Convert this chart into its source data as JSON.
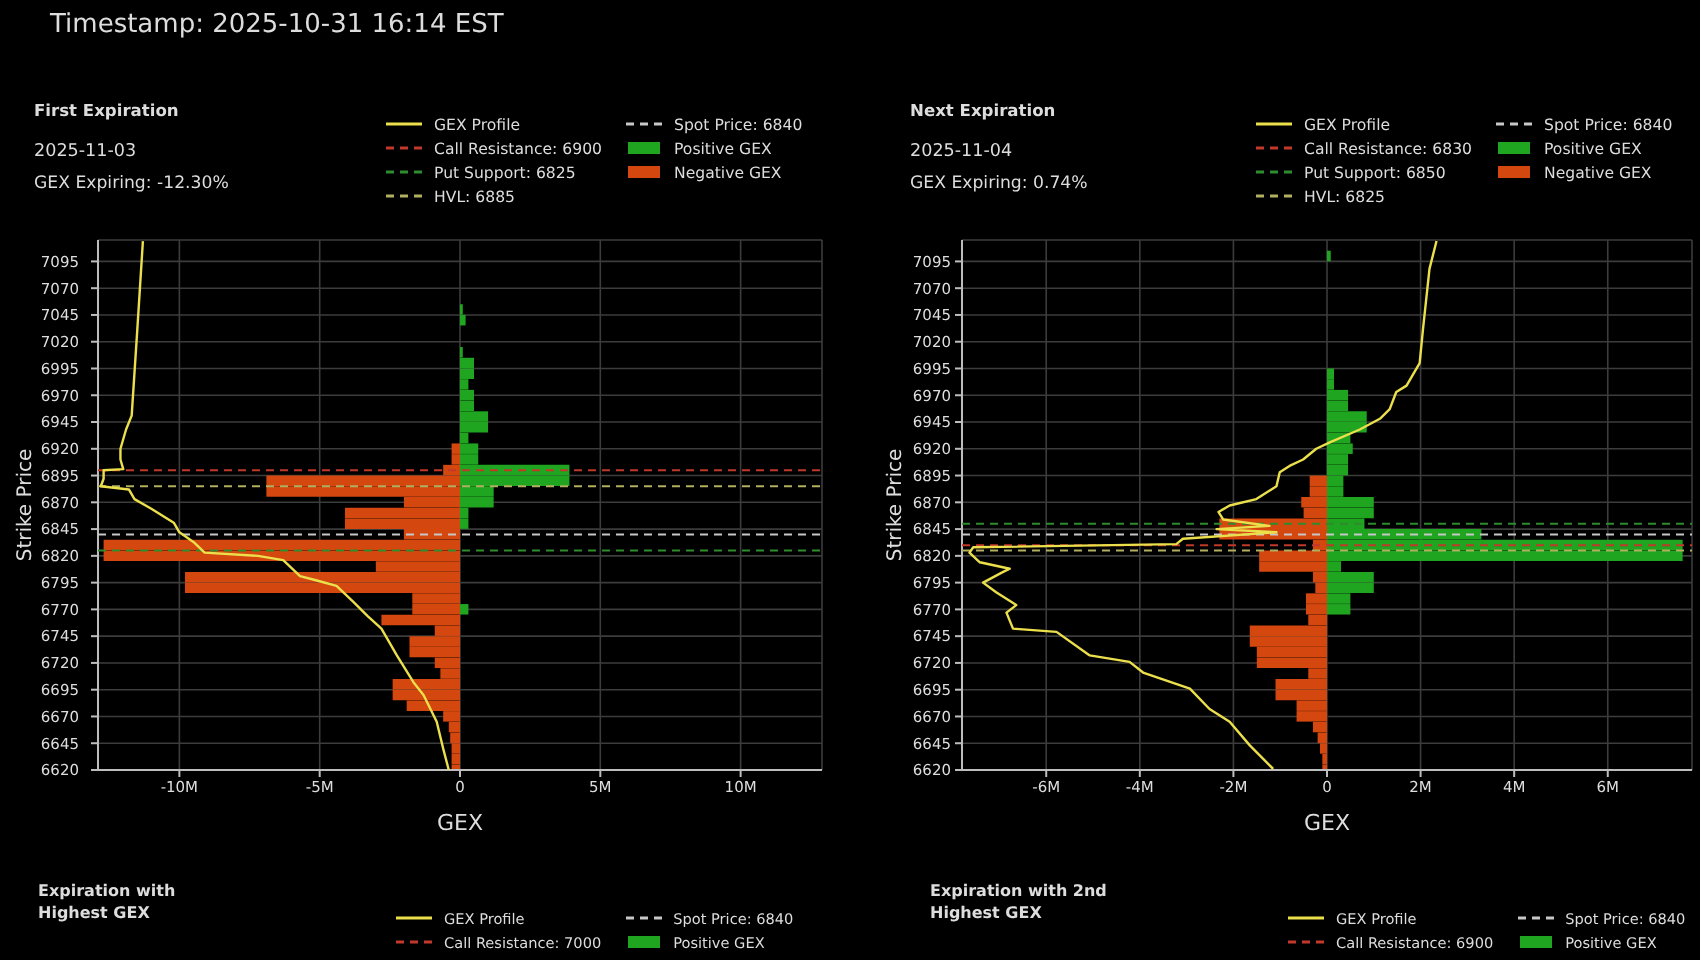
{
  "chart_data": [
    {
      "type": "other",
      "title": "Timestamp: 2025-10-31 16:14 EST"
    },
    {
      "type": "bar",
      "orientation": "horizontal",
      "title": "First Expiration",
      "subtitle": "2025-11-03",
      "annotations": [
        "GEX Expiring: -12.30%"
      ],
      "xlabel": "GEX",
      "ylabel": "Strike Price",
      "x": [
        6620,
        6630,
        6640,
        6650,
        6660,
        6670,
        6680,
        6690,
        6700,
        6710,
        6720,
        6730,
        6740,
        6750,
        6760,
        6770,
        6780,
        6790,
        6800,
        6810,
        6820,
        6830,
        6840,
        6850,
        6860,
        6870,
        6880,
        6890,
        6900,
        6910,
        6920,
        6930,
        6940,
        6950,
        6960,
        6970,
        6980,
        6990,
        7000,
        7010,
        7020,
        7030,
        7040,
        7050
      ],
      "series": [
        {
          "name": "GEX Profile",
          "type": "line",
          "color": "#ebe04b",
          "x": [
            7114,
            7031,
            6951,
            6938,
            6920,
            6910,
            6901,
            6900,
            6892,
            6885,
            6882,
            6873,
            6864,
            6851,
            6842,
            6833,
            6823,
            6820,
            6816,
            6801,
            6797,
            6792,
            6777,
            6764,
            6752,
            6727,
            6702,
            6690,
            6665,
            6640,
            6620
          ],
          "values": [
            -11.3,
            -11.5,
            -11.7,
            -11.9,
            -12.1,
            -12.1,
            -12.0,
            -12.7,
            -12.7,
            -12.8,
            -11.8,
            -11.6,
            -11.0,
            -10.2,
            -10.0,
            -9.5,
            -9.1,
            -7.2,
            -6.3,
            -5.7,
            -5.1,
            -4.4,
            -3.8,
            -3.3,
            -2.8,
            -2.25,
            -1.66,
            -1.3,
            -0.83,
            -0.6,
            -0.4
          ]
        },
        {
          "name": "Positive GEX",
          "color": "#1fa51f",
          "values": [
            null,
            null,
            null,
            null,
            null,
            null,
            null,
            null,
            null,
            null,
            null,
            null,
            null,
            null,
            null,
            0.3,
            null,
            null,
            null,
            null,
            null,
            null,
            null,
            0.3,
            0.3,
            1.2,
            1.2,
            3.9,
            3.9,
            0.65,
            0.65,
            0.3,
            1.0,
            1.0,
            0.5,
            0.5,
            0.3,
            0.5,
            0.5,
            0.1,
            null,
            null,
            0.2,
            0.1
          ]
        },
        {
          "name": "Negative GEX",
          "color": "#d4470e",
          "values": [
            -0.3,
            -0.3,
            -0.3,
            -0.35,
            -0.4,
            -0.6,
            -1.9,
            -2.4,
            -2.4,
            -0.7,
            -0.9,
            -1.8,
            -1.8,
            -0.9,
            -2.8,
            -1.7,
            -1.7,
            -9.8,
            -9.8,
            -3.0,
            -12.7,
            -12.7,
            -2.0,
            -4.1,
            -4.1,
            -2.0,
            -6.9,
            -6.9,
            -0.6,
            -0.3,
            -0.3,
            null,
            null,
            null,
            null,
            null,
            null,
            null,
            null,
            null,
            null,
            null,
            null,
            null
          ]
        }
      ],
      "xlim": [
        -12.9,
        12.9
      ],
      "xticks": [
        {
          "value": -10,
          "label": "-10M"
        },
        {
          "value": -5,
          "label": "-5M"
        },
        0,
        {
          "value": 5,
          "label": "5M"
        },
        {
          "value": 10,
          "label": "10M"
        }
      ],
      "ylim": [
        6620,
        7115
      ],
      "yticks": [
        6620,
        6645,
        6670,
        6695,
        6720,
        6745,
        6770,
        6795,
        6820,
        6845,
        6870,
        6895,
        6920,
        6945,
        6970,
        6995,
        7020,
        7045,
        7070,
        7095
      ],
      "ref_lines": [
        {
          "axis": "y",
          "value": 6900,
          "label": "Call Resistance: 6900",
          "color": "#c0392b",
          "line_style": "dashed"
        },
        {
          "axis": "y",
          "value": 6825,
          "label": "Put Support: 6825",
          "color": "#2e8b2e",
          "line_style": "dashed"
        },
        {
          "axis": "y",
          "value": 6885,
          "label": "HVL: 6885",
          "color": "#b0b060",
          "line_style": "dashed"
        },
        {
          "axis": "y",
          "value": 6840,
          "label": "Spot Price: 6840",
          "color": "#c8c8c8",
          "line_style": "dashed"
        }
      ],
      "grid": true,
      "legend": "top right"
    },
    {
      "type": "bar",
      "orientation": "horizontal",
      "title": "Next Expiration",
      "subtitle": "2025-11-04",
      "annotations": [
        "GEX Expiring: 0.74%"
      ],
      "xlabel": "GEX",
      "ylabel": "Strike Price",
      "x": [
        6620,
        6630,
        6640,
        6650,
        6660,
        6670,
        6680,
        6690,
        6700,
        6710,
        6720,
        6730,
        6740,
        6750,
        6760,
        6770,
        6780,
        6790,
        6800,
        6810,
        6820,
        6830,
        6840,
        6850,
        6860,
        6870,
        6880,
        6890,
        6900,
        6910,
        6920,
        6930,
        6940,
        6950,
        6960,
        6970,
        6980,
        6990,
        7000,
        7010,
        7020,
        7030,
        7040,
        7050,
        7060,
        7070,
        7080,
        7090,
        7100
      ],
      "series": [
        {
          "name": "GEX Profile",
          "type": "line",
          "color": "#ebe04b",
          "x": [
            7114,
            7088,
            7031,
            7000,
            6979,
            6973,
            6957,
            6948,
            6938,
            6926,
            6920,
            6910,
            6904,
            6898,
            6885,
            6879,
            6873,
            6867,
            6861,
            6854,
            6848,
            6845,
            6842,
            6836,
            6831,
            6828,
            6823,
            6814,
            6808,
            6805,
            6795,
            6786,
            6774,
            6767,
            6752,
            6749,
            6727,
            6721,
            6711,
            6696,
            6677,
            6665,
            6643,
            6621
          ],
          "values": [
            2.34,
            2.19,
            2.05,
            1.98,
            1.7,
            1.48,
            1.34,
            1.13,
            0.7,
            0.06,
            -0.23,
            -0.51,
            -0.8,
            -1.01,
            -1.08,
            -1.3,
            -1.51,
            -2.08,
            -2.32,
            -2.22,
            -1.23,
            -2.36,
            -1.08,
            -3.08,
            -3.22,
            -7.56,
            -7.64,
            -7.42,
            -6.78,
            -6.92,
            -7.35,
            -7.07,
            -6.64,
            -6.85,
            -6.71,
            -5.78,
            -5.07,
            -4.22,
            -3.93,
            -2.93,
            -2.51,
            -2.08,
            -1.65,
            -1.15
          ]
        },
        {
          "name": "Positive GEX",
          "color": "#1fa51f",
          "values": [
            null,
            null,
            null,
            null,
            null,
            null,
            null,
            null,
            null,
            null,
            null,
            null,
            null,
            null,
            null,
            0.5,
            0.5,
            1.0,
            1.0,
            0.3,
            7.6,
            7.6,
            3.3,
            0.8,
            1.0,
            1.0,
            0.35,
            0.35,
            0.45,
            0.45,
            0.55,
            0.5,
            0.85,
            0.85,
            0.45,
            0.45,
            0.15,
            0.15,
            null,
            null,
            null,
            null,
            null,
            null,
            null,
            null,
            null,
            null,
            0.08
          ]
        },
        {
          "name": "Negative GEX",
          "color": "#d4470e",
          "values": [
            -0.1,
            -0.1,
            -0.15,
            -0.2,
            -0.3,
            -0.65,
            -0.65,
            -1.1,
            -1.1,
            -0.4,
            -1.5,
            -1.5,
            -1.65,
            -1.65,
            -0.4,
            -0.45,
            -0.45,
            -0.25,
            -0.3,
            -1.45,
            -1.45,
            -0.3,
            -2.3,
            -2.3,
            -0.5,
            -0.55,
            -0.37,
            -0.37,
            null,
            null,
            null,
            null,
            null,
            null,
            null,
            null,
            null,
            null,
            null,
            null,
            null,
            null,
            null,
            null,
            null,
            null,
            null,
            null,
            null
          ]
        }
      ],
      "xlim": [
        -7.8,
        7.8
      ],
      "xticks": [
        {
          "value": -6,
          "label": "-6M"
        },
        {
          "value": -4,
          "label": "-4M"
        },
        {
          "value": -2,
          "label": "-2M"
        },
        0,
        {
          "value": 2,
          "label": "2M"
        },
        {
          "value": 4,
          "label": "4M"
        },
        {
          "value": 6,
          "label": "6M"
        }
      ],
      "ylim": [
        6620,
        7115
      ],
      "yticks": [
        6620,
        6645,
        6670,
        6695,
        6720,
        6745,
        6770,
        6795,
        6820,
        6845,
        6870,
        6895,
        6920,
        6945,
        6970,
        6995,
        7020,
        7045,
        7070,
        7095
      ],
      "ref_lines": [
        {
          "axis": "y",
          "value": 6830,
          "label": "Call Resistance: 6830",
          "color": "#c0392b",
          "line_style": "dashed"
        },
        {
          "axis": "y",
          "value": 6850,
          "label": "Put Support: 6850",
          "color": "#2e8b2e",
          "line_style": "dashed"
        },
        {
          "axis": "y",
          "value": 6825,
          "label": "HVL: 6825",
          "color": "#b0b060",
          "line_style": "dashed"
        },
        {
          "axis": "y",
          "value": 6840,
          "label": "Spot Price: 6840",
          "color": "#c8c8c8",
          "line_style": "dashed"
        }
      ],
      "grid": true,
      "legend": "top right"
    },
    {
      "type": "other",
      "title": "Expiration with Highest GEX",
      "annotations": [
        "GEX Profile",
        "Call Resistance: 7000",
        "Spot Price: 6840",
        "Positive GEX"
      ]
    },
    {
      "type": "other",
      "title": "Expiration with 2nd Highest GEX",
      "annotations": [
        "GEX Profile",
        "Call Resistance: 6900",
        "Spot Price: 6840",
        "Positive GEX"
      ]
    }
  ]
}
